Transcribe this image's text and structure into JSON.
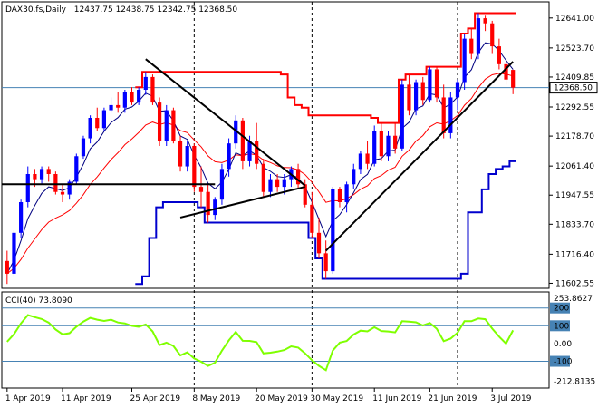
{
  "chart_data": [
    {
      "type": "candlestick",
      "title": "DAX30.fs,Daily",
      "ohlc_header": "12437.75 12438.75 12342.75 12368.50",
      "current_price_label": "12368.50",
      "current_price": 12368.5,
      "ylim": [
        11590,
        12690
      ],
      "y_ticks": [
        "12641.00",
        "12523.70",
        "12409.85",
        "12292.55",
        "12178.70",
        "12061.40",
        "11947.55",
        "11833.70",
        "11716.40",
        "11602.55"
      ],
      "y_tick_values": [
        12641.0,
        12523.7,
        12409.85,
        12292.55,
        12178.7,
        12061.4,
        11947.55,
        11833.7,
        11716.4,
        11602.55
      ],
      "x_ticks": [
        "1 Apr 2019",
        "11 Apr 2019",
        "25 Apr 2019",
        "8 May 2019",
        "20 May 2019",
        "30 May 2019",
        "11 Jun 2019",
        "21 Jun 2019",
        "3 Jul 2019"
      ],
      "x_tick_bar_index": [
        0,
        8,
        18,
        27,
        36,
        44,
        53,
        61,
        70
      ],
      "vertical_markers_bar_index": [
        27,
        44,
        65
      ],
      "colors": {
        "bull": "#0000ff",
        "bear": "#ff0000",
        "ma_fast": "#000080",
        "ma_slow": "#ff0000",
        "channel_upper": "#ff0000",
        "channel_lower": "#0000cd",
        "trendline": "#000000",
        "current_price_line": "#4682b4"
      },
      "candles": [
        [
          11690,
          11730,
          11600,
          11640
        ],
        [
          11640,
          11810,
          11630,
          11800
        ],
        [
          11800,
          11930,
          11780,
          11920
        ],
        [
          11920,
          12060,
          11900,
          12030
        ],
        [
          12030,
          12050,
          11980,
          12010
        ],
        [
          12010,
          12060,
          11990,
          12050
        ],
        [
          12050,
          12060,
          12000,
          12030
        ],
        [
          12030,
          12040,
          11950,
          11960
        ],
        [
          11960,
          11990,
          11920,
          11950
        ],
        [
          11950,
          12010,
          11930,
          12000
        ],
        [
          12000,
          12110,
          11990,
          12100
        ],
        [
          12100,
          12180,
          12090,
          12170
        ],
        [
          12170,
          12260,
          12150,
          12250
        ],
        [
          12250,
          12290,
          12200,
          12210
        ],
        [
          12210,
          12290,
          12200,
          12280
        ],
        [
          12280,
          12330,
          12270,
          12300
        ],
        [
          12300,
          12350,
          12270,
          12290
        ],
        [
          12290,
          12360,
          12270,
          12350
        ],
        [
          12350,
          12370,
          12300,
          12310
        ],
        [
          12310,
          12370,
          12300,
          12360
        ],
        [
          12360,
          12430,
          12340,
          12410
        ],
        [
          12410,
          12420,
          12300,
          12310
        ],
        [
          12310,
          12330,
          12140,
          12160
        ],
        [
          12160,
          12300,
          12140,
          12280
        ],
        [
          12280,
          12290,
          12150,
          12160
        ],
        [
          12160,
          12180,
          12040,
          12060
        ],
        [
          12060,
          12160,
          12040,
          12140
        ],
        [
          12140,
          12150,
          11960,
          11980
        ],
        [
          11980,
          12060,
          11900,
          11960
        ],
        [
          11960,
          11990,
          11840,
          11870
        ],
        [
          11870,
          11940,
          11850,
          11930
        ],
        [
          11930,
          12070,
          11910,
          12050
        ],
        [
          12050,
          12170,
          12020,
          12150
        ],
        [
          12150,
          12260,
          12130,
          12240
        ],
        [
          12240,
          12250,
          12050,
          12080
        ],
        [
          12080,
          12180,
          12060,
          12160
        ],
        [
          12160,
          12230,
          12050,
          12070
        ],
        [
          12070,
          12090,
          11940,
          11960
        ],
        [
          11960,
          12030,
          11940,
          12010
        ],
        [
          12010,
          12030,
          11960,
          11980
        ],
        [
          11980,
          12030,
          11950,
          12010
        ],
        [
          12010,
          12060,
          11980,
          12050
        ],
        [
          12050,
          12070,
          11970,
          11990
        ],
        [
          11990,
          12010,
          11900,
          11910
        ],
        [
          11910,
          11960,
          11780,
          11800
        ],
        [
          11800,
          11860,
          11700,
          11720
        ],
        [
          11720,
          11770,
          11620,
          11650
        ],
        [
          11650,
          11980,
          11640,
          11970
        ],
        [
          11970,
          11980,
          11900,
          11920
        ],
        [
          11920,
          12000,
          11880,
          11990
        ],
        [
          11990,
          12070,
          11970,
          12050
        ],
        [
          12050,
          12120,
          12030,
          12110
        ],
        [
          12110,
          12160,
          12050,
          12070
        ],
        [
          12070,
          12220,
          12060,
          12200
        ],
        [
          12200,
          12230,
          12080,
          12100
        ],
        [
          12100,
          12200,
          12080,
          12180
        ],
        [
          12180,
          12230,
          12110,
          12130
        ],
        [
          12130,
          12400,
          12120,
          12380
        ],
        [
          12380,
          12420,
          12260,
          12280
        ],
        [
          12280,
          12400,
          12260,
          12390
        ],
        [
          12390,
          12410,
          12300,
          12320
        ],
        [
          12320,
          12450,
          12310,
          12440
        ],
        [
          12440,
          12450,
          12310,
          12330
        ],
        [
          12330,
          12380,
          12170,
          12190
        ],
        [
          12190,
          12350,
          12170,
          12330
        ],
        [
          12330,
          12400,
          12280,
          12390
        ],
        [
          12390,
          12580,
          12360,
          12560
        ],
        [
          12560,
          12600,
          12480,
          12500
        ],
        [
          12500,
          12660,
          12480,
          12640
        ],
        [
          12640,
          12650,
          12590,
          12620
        ],
        [
          12620,
          12630,
          12500,
          12530
        ],
        [
          12530,
          12560,
          12440,
          12460
        ],
        [
          12460,
          12480,
          12380,
          12400
        ],
        [
          12437.75,
          12438.75,
          12342.75,
          12368.5
        ]
      ],
      "cci_panel": {
        "title": "CCI(40) 73.8090",
        "current_value": 73.809,
        "ylim": [
          -240,
          280
        ],
        "y_ticks": [
          "253.8627",
          "200",
          "100",
          "0.00",
          "-100",
          "-212.8135"
        ],
        "y_tick_values": [
          253.8627,
          200,
          100,
          0,
          -100,
          -212.8135
        ],
        "levels": [
          200,
          100,
          -100
        ],
        "line_color": "#7fff00",
        "level_color": "#4682b4"
      }
    }
  ]
}
